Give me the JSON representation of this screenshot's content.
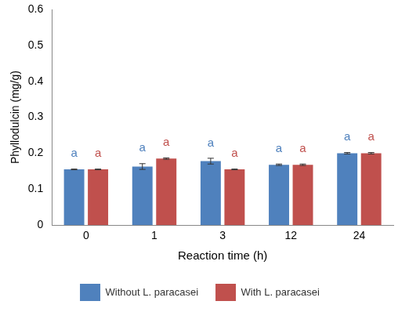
{
  "chart_data": {
    "type": "bar",
    "xlabel": "Reaction time (h)",
    "ylabel": "Phyllodulcin (mg/g)",
    "categories": [
      "0",
      "1",
      "3",
      "12",
      "24"
    ],
    "series": [
      {
        "name": "Without L. paracasei",
        "color": "#4f81bd",
        "values": [
          0.155,
          0.163,
          0.178,
          0.168,
          0.2
        ],
        "errors": [
          0.001,
          0.008,
          0.008,
          0.002,
          0.002
        ],
        "letters": [
          "a",
          "a",
          "a",
          "a",
          "a"
        ]
      },
      {
        "name": "With L. paracasei",
        "color": "#c0504d",
        "values": [
          0.155,
          0.185,
          0.155,
          0.168,
          0.2
        ],
        "errors": [
          0.001,
          0.002,
          0.001,
          0.002,
          0.002
        ],
        "letters": [
          "a",
          "a",
          "a",
          "a",
          "a"
        ]
      }
    ],
    "ylim": [
      0,
      0.6
    ],
    "yticks": [
      0,
      0.1,
      0.2,
      0.3,
      0.4,
      0.5,
      0.6
    ],
    "grid": false,
    "legend": "bottom"
  }
}
